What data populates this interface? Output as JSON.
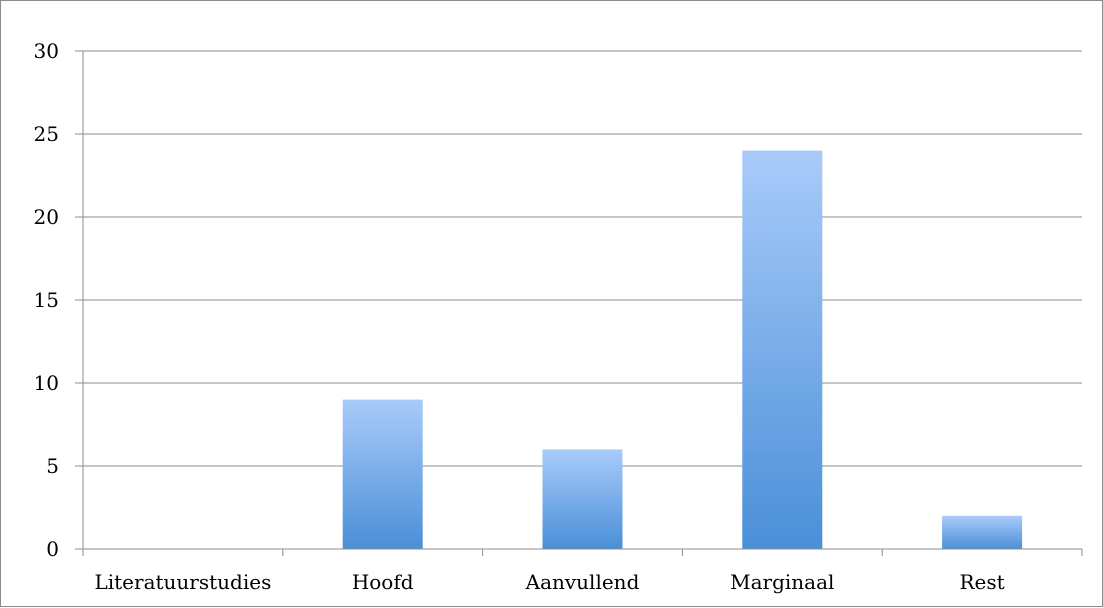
{
  "chart_data": {
    "type": "bar",
    "title": "",
    "xlabel": "",
    "ylabel": "",
    "categories": [
      "Literatuurstudies",
      "Hoofd",
      "Aanvullend",
      "Marginaal",
      "Rest"
    ],
    "values": [
      0,
      9,
      6,
      24,
      2
    ],
    "ylim": [
      0,
      30
    ],
    "yticks": [
      "0",
      "5",
      "10",
      "15",
      "20",
      "25",
      "30"
    ],
    "grid": true,
    "legend": "none",
    "bar_color_top": "#a9cbfa",
    "bar_color_bottom": "#4a8fd8"
  }
}
